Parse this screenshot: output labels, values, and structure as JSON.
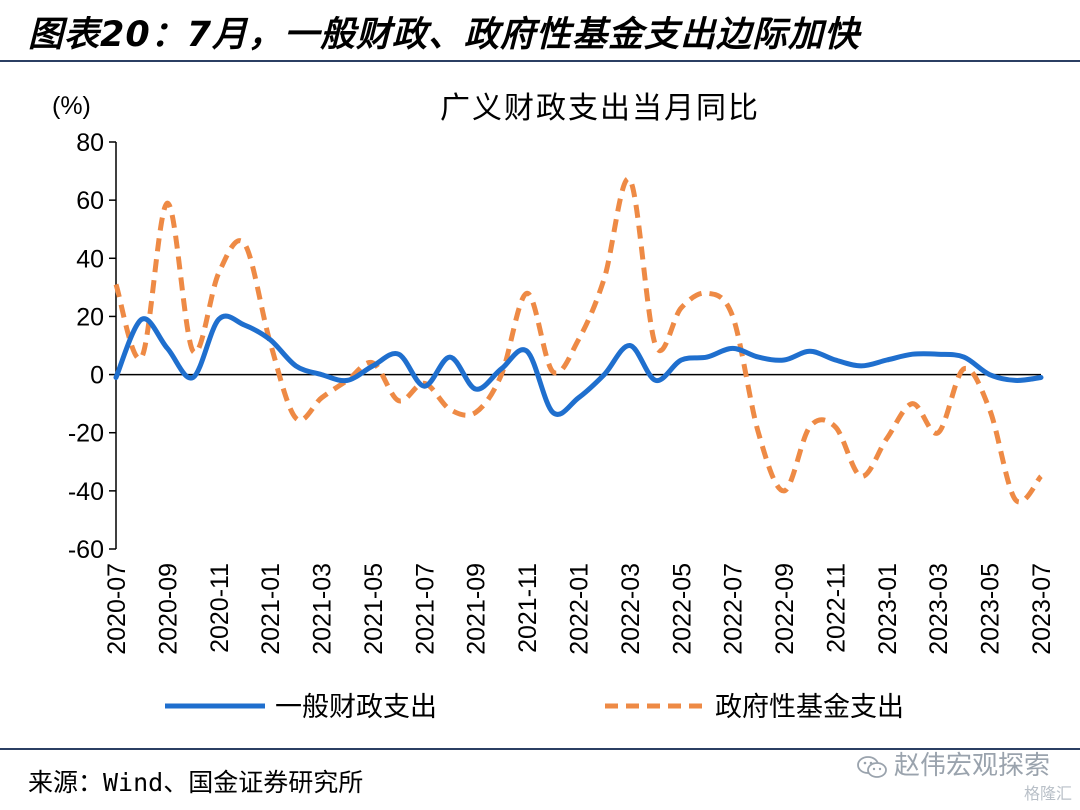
{
  "header": {
    "figure_title": "图表20：7月，一般财政、政府性基金支出边际加快"
  },
  "footer": {
    "source": "来源：Wind、国金证券研究所",
    "watermark": "赵伟宏观探索",
    "logo": "格隆汇"
  },
  "icons": {
    "watermark_icon": "wechat-icon"
  },
  "colors": {
    "general_fiscal": "#1f6fce",
    "gov_fund": "#ee8a45",
    "rule": "#2b3f63"
  },
  "chart_data": {
    "type": "line",
    "title": "广义财政支出当月同比",
    "ylabel": "(%)",
    "xlabel": "",
    "ylim": [
      -60,
      80
    ],
    "yticks": [
      80,
      60,
      40,
      20,
      0,
      -20,
      -40,
      -60
    ],
    "x": [
      "2020-07",
      "2020-08",
      "2020-09",
      "2020-10",
      "2020-11",
      "2020-12",
      "2021-01",
      "2021-02",
      "2021-03",
      "2021-04",
      "2021-05",
      "2021-06",
      "2021-07",
      "2021-08",
      "2021-09",
      "2021-10",
      "2021-11",
      "2021-12",
      "2022-01",
      "2022-02",
      "2022-03",
      "2022-04",
      "2022-05",
      "2022-06",
      "2022-07",
      "2022-08",
      "2022-09",
      "2022-10",
      "2022-11",
      "2022-12",
      "2023-01",
      "2023-02",
      "2023-03",
      "2023-04",
      "2023-05",
      "2023-06",
      "2023-07"
    ],
    "xtick_labels": [
      "2020-07",
      "2020-09",
      "2020-11",
      "2021-01",
      "2021-03",
      "2021-05",
      "2021-07",
      "2021-09",
      "2021-11",
      "2022-01",
      "2022-03",
      "2022-05",
      "2022-07",
      "2022-09",
      "2022-11",
      "2023-01",
      "2023-03",
      "2023-05",
      "2023-07"
    ],
    "legend": "bottom",
    "series": [
      {
        "name": "一般财政支出",
        "style": "solid",
        "values": [
          -1,
          19,
          9,
          -1,
          19,
          17,
          12,
          3,
          0,
          -2,
          3,
          7,
          -4,
          6,
          -5,
          2,
          8,
          -13,
          -8,
          0,
          10,
          -2,
          5,
          6,
          9,
          6,
          5,
          8,
          5,
          3,
          5,
          7,
          7,
          6,
          0,
          -2,
          -1
        ]
      },
      {
        "name": "政府性基金支出",
        "style": "dashed",
        "values": [
          31,
          6,
          59,
          8,
          35,
          45,
          11,
          -15,
          -8,
          -2,
          4,
          -9,
          -3,
          -12,
          -13,
          0,
          28,
          1,
          12,
          33,
          67,
          10,
          23,
          28,
          20,
          -20,
          -40,
          -18,
          -18,
          -35,
          -22,
          -10,
          -20,
          2,
          -12,
          -43,
          -35
        ]
      }
    ]
  }
}
